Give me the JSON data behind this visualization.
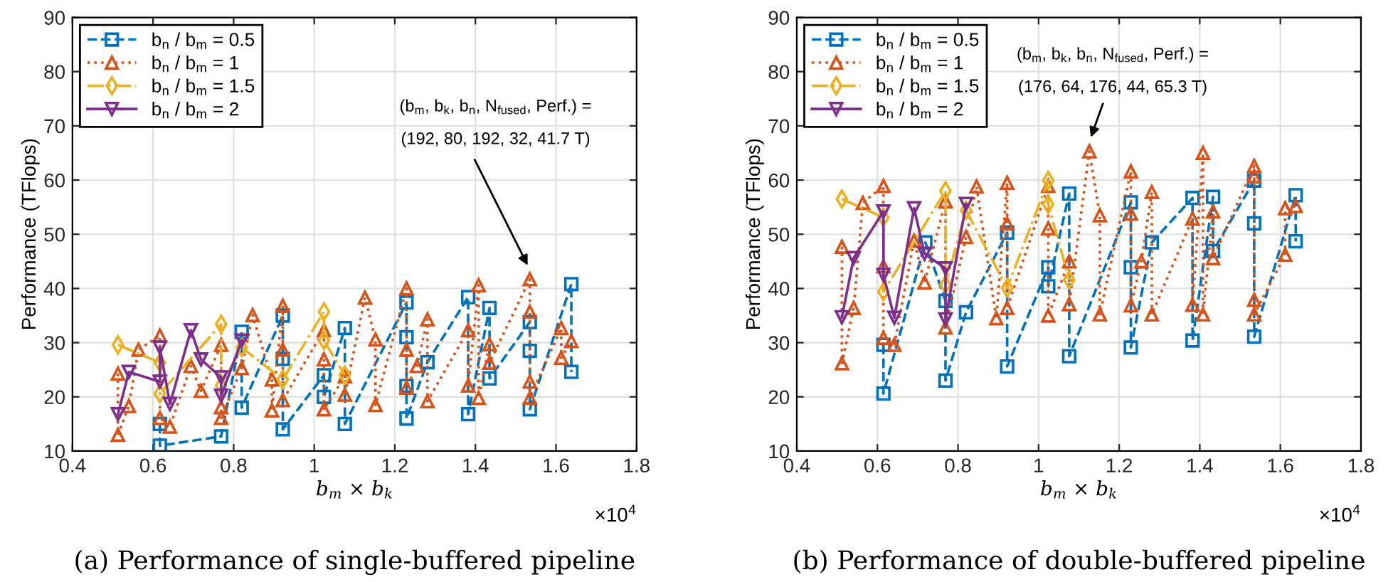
{
  "chart_data": [
    {
      "type": "line",
      "title": "(a) Performance of single-buffered pipeline",
      "xlabel": "b$_{m}$ × b$_{k}$",
      "ylabel": "Performance (TFlops)",
      "xlim": [
        0.4,
        1.8
      ],
      "xticks": [
        0.4,
        0.6,
        0.8,
        1,
        1.2,
        1.4,
        1.6,
        1.8
      ],
      "ylim": [
        10,
        90
      ],
      "yticks": [
        10,
        20,
        30,
        40,
        50,
        60,
        70,
        80,
        90
      ],
      "grid": true,
      "legend": "top left",
      "annotations": [
        "(b$_{m}$, b$_{k}$, b$_{n}$, N$_{fused}$, Perf.) =",
        "(192, 80, 192, 32, 41.7 T)",
        "×10$^{4}$"
      ],
      "series": [
        {
          "name": "b$_{n}$ / b$_{m}$ = 0.5",
          "color": "#0072bd",
          "marker": "square",
          "line_style": "dashed",
          "x": [
            0.617,
            0.617,
            0.769,
            0.82,
            0.82,
            0.922,
            0.922,
            0.922,
            1.024,
            1.024,
            1.076,
            1.076,
            1.229,
            1.229,
            1.229,
            1.229,
            1.281,
            1.382,
            1.382,
            1.435,
            1.435,
            1.535,
            1.535,
            1.535,
            1.638,
            1.638
          ],
          "values": [
            15,
            11,
            12.7,
            32,
            18,
            35,
            27,
            14,
            24,
            20,
            32.7,
            15,
            37.4,
            31,
            22,
            16,
            26.4,
            38.4,
            16.8,
            36.4,
            23.4,
            33.8,
            28.5,
            17.7,
            40.8,
            24.6
          ]
        },
        {
          "name": "b$_{n}$ / b$_{m}$ = 1",
          "color": "#d95319",
          "marker": "triangle",
          "line_style": "dotted",
          "x": [
            0.513,
            0.513,
            0.54,
            0.564,
            0.617,
            0.617,
            0.642,
            0.694,
            0.719,
            0.769,
            0.769,
            0.769,
            0.82,
            0.847,
            0.895,
            0.895,
            0.922,
            0.922,
            0.922,
            1.024,
            1.024,
            1.024,
            1.076,
            1.076,
            1.126,
            1.152,
            1.152,
            1.229,
            1.229,
            1.229,
            1.255,
            1.281,
            1.281,
            1.382,
            1.382,
            1.408,
            1.408,
            1.435,
            1.435,
            1.535,
            1.535,
            1.535,
            1.535,
            1.613,
            1.613,
            1.638
          ],
          "values": [
            24.3,
            13,
            18.3,
            28.7,
            31.3,
            16.1,
            14.5,
            25.7,
            21.1,
            29.6,
            18.1,
            16.1,
            25.3,
            35.1,
            23.2,
            17.5,
            36.8,
            28.7,
            19.4,
            32.3,
            26.9,
            17.7,
            23.8,
            20.4,
            38.3,
            30.6,
            18.5,
            40,
            28.7,
            21.7,
            25.7,
            34.3,
            19.2,
            32.3,
            22.1,
            40.6,
            19.8,
            29.7,
            26.3,
            41.7,
            35.7,
            22.8,
            19.8,
            32.7,
            27.2,
            30.3
          ]
        },
        {
          "name": "b$_{n}$ / b$_{m}$ = 1.5",
          "color": "#edb120",
          "marker": "diamond",
          "line_style": "dashdot",
          "x": [
            0.513,
            0.617,
            0.617,
            0.769,
            0.769,
            0.82,
            0.922,
            1.024,
            1.024,
            1.076
          ],
          "values": [
            29.6,
            26.3,
            20.6,
            33.4,
            22.1,
            29.1,
            23.2,
            35.7,
            30.4,
            24
          ]
        },
        {
          "name": "b$_{n}$ / b$_{m}$ = 2",
          "color": "#7e2f8e",
          "marker": "triangle_down",
          "line_style": "solid",
          "x": [
            0.513,
            0.54,
            0.617,
            0.617,
            0.642,
            0.694,
            0.719,
            0.769,
            0.769,
            0.82
          ],
          "values": [
            16.8,
            24.6,
            22.8,
            29.1,
            18.7,
            32.3,
            26.9,
            23.6,
            20.2,
            30.4
          ]
        }
      ]
    },
    {
      "type": "line",
      "title": "(b) Performance of double-buffered pipeline",
      "xlabel": "b$_{m}$ × b$_{k}$",
      "ylabel": "Performance (TFlops)",
      "xlim": [
        0.4,
        1.8
      ],
      "xticks": [
        0.4,
        0.6,
        0.8,
        1,
        1.2,
        1.4,
        1.6,
        1.8
      ],
      "ylim": [
        10,
        90
      ],
      "yticks": [
        10,
        20,
        30,
        40,
        50,
        60,
        70,
        80,
        90
      ],
      "grid": true,
      "legend": "top left",
      "annotations": [
        "(b$_{m}$, b$_{k}$, b$_{n}$, N$_{fused}$, Perf.) =",
        "(176, 64, 176, 44, 65.3 T)",
        "×10$^{4}$"
      ],
      "series": [
        {
          "name": "b$_{n}$ / b$_{m}$ = 0.5",
          "color": "#0072bd",
          "marker": "square",
          "line_style": "dashed",
          "x": [
            0.615,
            0.615,
            0.719,
            0.769,
            0.769,
            0.82,
            0.922,
            0.922,
            1.024,
            1.024,
            1.076,
            1.076,
            1.229,
            1.229,
            1.229,
            1.281,
            1.382,
            1.382,
            1.433,
            1.433,
            1.535,
            1.535,
            1.535,
            1.638,
            1.638
          ],
          "values": [
            29.6,
            20.6,
            48.5,
            37.7,
            23,
            35.6,
            50.3,
            25.6,
            43.9,
            40.4,
            57.5,
            27.5,
            55.9,
            43.9,
            29.1,
            48.5,
            56.7,
            30.4,
            56.9,
            46.9,
            59.9,
            52,
            31.1,
            57.2,
            48.7
          ]
        },
        {
          "name": "b$_{n}$ / b$_{m}$ = 1",
          "color": "#d95319",
          "marker": "triangle",
          "line_style": "dotted",
          "x": [
            0.512,
            0.512,
            0.541,
            0.564,
            0.615,
            0.615,
            0.615,
            0.642,
            0.691,
            0.717,
            0.769,
            0.769,
            0.82,
            0.846,
            0.895,
            0.922,
            0.922,
            0.922,
            1.024,
            1.024,
            1.024,
            1.076,
            1.076,
            1.126,
            1.152,
            1.152,
            1.229,
            1.229,
            1.229,
            1.255,
            1.281,
            1.281,
            1.382,
            1.382,
            1.408,
            1.408,
            1.433,
            1.433,
            1.535,
            1.535,
            1.535,
            1.535,
            1.612,
            1.612,
            1.638
          ],
          "values": [
            47.7,
            26.2,
            36.4,
            55.8,
            58.9,
            44.1,
            30.9,
            29.6,
            48.8,
            41.1,
            56.1,
            32.8,
            49.5,
            58.8,
            34.5,
            59.5,
            52,
            36.4,
            58.9,
            51.1,
            35,
            45,
            37.1,
            65.3,
            53.5,
            35.2,
            61.6,
            53.8,
            36.9,
            45,
            57.8,
            35.2,
            52.9,
            37,
            65,
            35.2,
            54.2,
            45.6,
            62.6,
            60.7,
            37.9,
            35.2,
            46.2,
            54.8,
            55.2
          ]
        },
        {
          "name": "b$_{n}$ / b$_{m}$ = 1.5",
          "color": "#edb120",
          "marker": "diamond",
          "line_style": "dashdot",
          "x": [
            0.512,
            0.615,
            0.615,
            0.769,
            0.769,
            0.82,
            0.922,
            1.024,
            1.024,
            1.076
          ],
          "values": [
            56.5,
            53.1,
            39.4,
            58,
            40.7,
            54.4,
            40.1,
            59.9,
            55.5,
            41.6
          ]
        },
        {
          "name": "b$_{n}$ / b$_{m}$ = 2",
          "color": "#7e2f8e",
          "marker": "triangle_down",
          "line_style": "solid",
          "x": [
            0.512,
            0.541,
            0.615,
            0.615,
            0.642,
            0.691,
            0.717,
            0.769,
            0.769,
            0.82
          ],
          "values": [
            34.7,
            45.6,
            54.2,
            42.5,
            34.6,
            54.8,
            46.4,
            43.7,
            34.3,
            55.6
          ]
        }
      ]
    }
  ]
}
